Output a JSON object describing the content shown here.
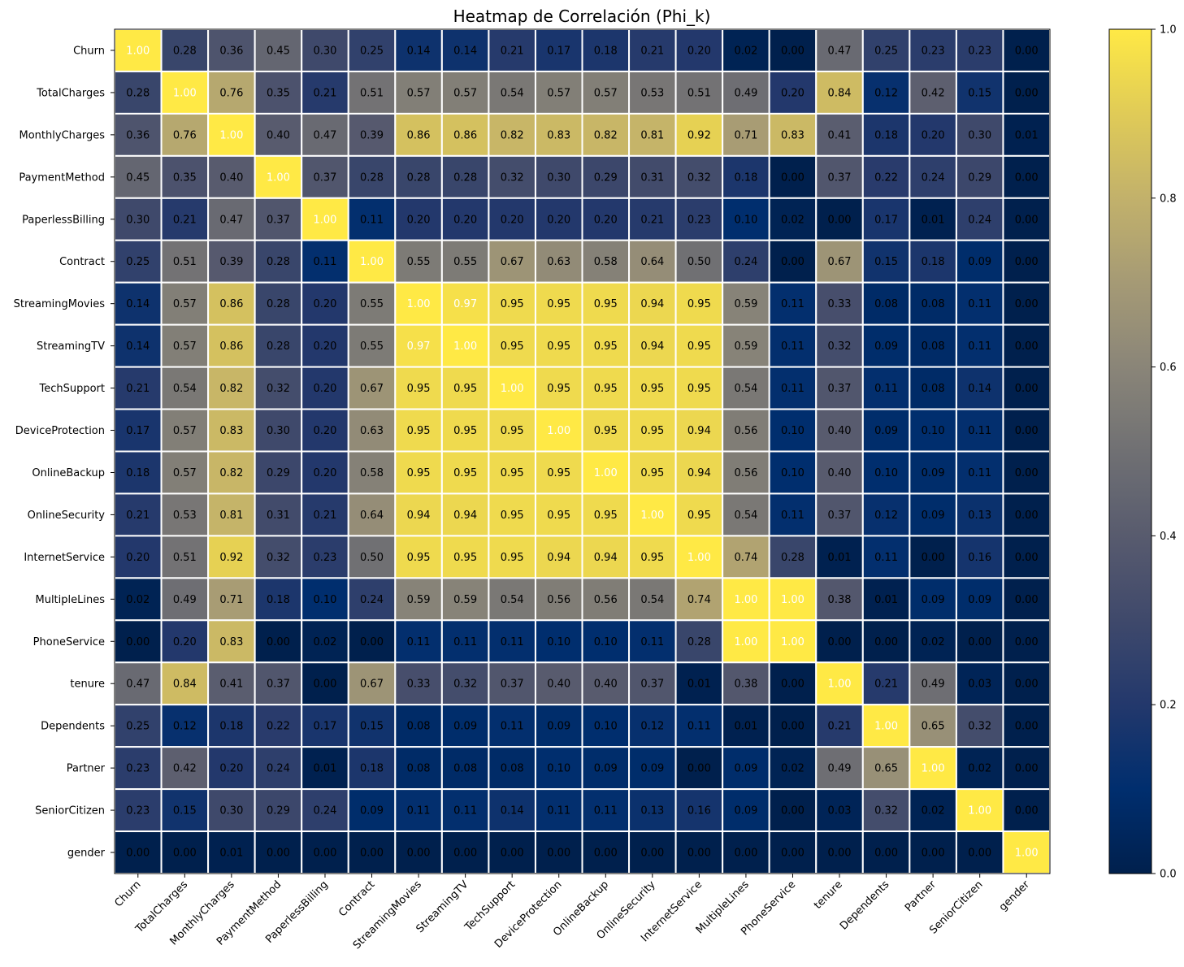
{
  "chart_data": {
    "type": "heatmap",
    "title": "Heatmap de Correlación (Phi_k)",
    "xlabel": "",
    "ylabel": "",
    "rows": [
      "Churn",
      "TotalCharges",
      "MonthlyCharges",
      "PaymentMethod",
      "PaperlessBilling",
      "Contract",
      "StreamingMovies",
      "StreamingTV",
      "TechSupport",
      "DeviceProtection",
      "OnlineBackup",
      "OnlineSecurity",
      "InternetService",
      "MultipleLines",
      "PhoneService",
      "tenure",
      "Dependents",
      "Partner",
      "SeniorCitizen",
      "gender"
    ],
    "columns": [
      "Churn",
      "TotalCharges",
      "MonthlyCharges",
      "PaymentMethod",
      "PaperlessBilling",
      "Contract",
      "StreamingMovies",
      "StreamingTV",
      "TechSupport",
      "DeviceProtection",
      "OnlineBackup",
      "OnlineSecurity",
      "InternetService",
      "MultipleLines",
      "PhoneService",
      "tenure",
      "Dependents",
      "Partner",
      "SeniorCitizen",
      "gender"
    ],
    "values": [
      [
        1.0,
        0.28,
        0.36,
        0.45,
        0.3,
        0.25,
        0.14,
        0.14,
        0.21,
        0.17,
        0.18,
        0.21,
        0.2,
        0.02,
        0.0,
        0.47,
        0.25,
        0.23,
        0.23,
        0.0
      ],
      [
        0.28,
        1.0,
        0.76,
        0.35,
        0.21,
        0.51,
        0.57,
        0.57,
        0.54,
        0.57,
        0.57,
        0.53,
        0.51,
        0.49,
        0.2,
        0.84,
        0.12,
        0.42,
        0.15,
        0.0
      ],
      [
        0.36,
        0.76,
        1.0,
        0.4,
        0.47,
        0.39,
        0.86,
        0.86,
        0.82,
        0.83,
        0.82,
        0.81,
        0.92,
        0.71,
        0.83,
        0.41,
        0.18,
        0.2,
        0.3,
        0.01
      ],
      [
        0.45,
        0.35,
        0.4,
        1.0,
        0.37,
        0.28,
        0.28,
        0.28,
        0.32,
        0.3,
        0.29,
        0.31,
        0.32,
        0.18,
        0.0,
        0.37,
        0.22,
        0.24,
        0.29,
        0.0
      ],
      [
        0.3,
        0.21,
        0.47,
        0.37,
        1.0,
        0.11,
        0.2,
        0.2,
        0.2,
        0.2,
        0.2,
        0.21,
        0.23,
        0.1,
        0.02,
        0.0,
        0.17,
        0.01,
        0.24,
        0.0
      ],
      [
        0.25,
        0.51,
        0.39,
        0.28,
        0.11,
        1.0,
        0.55,
        0.55,
        0.67,
        0.63,
        0.58,
        0.64,
        0.5,
        0.24,
        0.0,
        0.67,
        0.15,
        0.18,
        0.09,
        0.0
      ],
      [
        0.14,
        0.57,
        0.86,
        0.28,
        0.2,
        0.55,
        1.0,
        0.97,
        0.95,
        0.95,
        0.95,
        0.94,
        0.95,
        0.59,
        0.11,
        0.33,
        0.08,
        0.08,
        0.11,
        0.0
      ],
      [
        0.14,
        0.57,
        0.86,
        0.28,
        0.2,
        0.55,
        0.97,
        1.0,
        0.95,
        0.95,
        0.95,
        0.94,
        0.95,
        0.59,
        0.11,
        0.32,
        0.09,
        0.08,
        0.11,
        0.0
      ],
      [
        0.21,
        0.54,
        0.82,
        0.32,
        0.2,
        0.67,
        0.95,
        0.95,
        1.0,
        0.95,
        0.95,
        0.95,
        0.95,
        0.54,
        0.11,
        0.37,
        0.11,
        0.08,
        0.14,
        0.0
      ],
      [
        0.17,
        0.57,
        0.83,
        0.3,
        0.2,
        0.63,
        0.95,
        0.95,
        0.95,
        1.0,
        0.95,
        0.95,
        0.94,
        0.56,
        0.1,
        0.4,
        0.09,
        0.1,
        0.11,
        0.0
      ],
      [
        0.18,
        0.57,
        0.82,
        0.29,
        0.2,
        0.58,
        0.95,
        0.95,
        0.95,
        0.95,
        1.0,
        0.95,
        0.94,
        0.56,
        0.1,
        0.4,
        0.1,
        0.09,
        0.11,
        0.0
      ],
      [
        0.21,
        0.53,
        0.81,
        0.31,
        0.21,
        0.64,
        0.94,
        0.94,
        0.95,
        0.95,
        0.95,
        1.0,
        0.95,
        0.54,
        0.11,
        0.37,
        0.12,
        0.09,
        0.13,
        0.0
      ],
      [
        0.2,
        0.51,
        0.92,
        0.32,
        0.23,
        0.5,
        0.95,
        0.95,
        0.95,
        0.94,
        0.94,
        0.95,
        1.0,
        0.74,
        0.28,
        0.01,
        0.11,
        0.0,
        0.16,
        0.0
      ],
      [
        0.02,
        0.49,
        0.71,
        0.18,
        0.1,
        0.24,
        0.59,
        0.59,
        0.54,
        0.56,
        0.56,
        0.54,
        0.74,
        1.0,
        1.0,
        0.38,
        0.01,
        0.09,
        0.09,
        0.0
      ],
      [
        0.0,
        0.2,
        0.83,
        0.0,
        0.02,
        0.0,
        0.11,
        0.11,
        0.11,
        0.1,
        0.1,
        0.11,
        0.28,
        1.0,
        1.0,
        0.0,
        0.0,
        0.02,
        0.0,
        0.0
      ],
      [
        0.47,
        0.84,
        0.41,
        0.37,
        0.0,
        0.67,
        0.33,
        0.32,
        0.37,
        0.4,
        0.4,
        0.37,
        0.01,
        0.38,
        0.0,
        1.0,
        0.21,
        0.49,
        0.03,
        0.0
      ],
      [
        0.25,
        0.12,
        0.18,
        0.22,
        0.17,
        0.15,
        0.08,
        0.09,
        0.11,
        0.09,
        0.1,
        0.12,
        0.11,
        0.01,
        0.0,
        0.21,
        1.0,
        0.65,
        0.32,
        0.0
      ],
      [
        0.23,
        0.42,
        0.2,
        0.24,
        0.01,
        0.18,
        0.08,
        0.08,
        0.08,
        0.1,
        0.09,
        0.09,
        0.0,
        0.09,
        0.02,
        0.49,
        0.65,
        1.0,
        0.02,
        0.0
      ],
      [
        0.23,
        0.15,
        0.3,
        0.29,
        0.24,
        0.09,
        0.11,
        0.11,
        0.14,
        0.11,
        0.11,
        0.13,
        0.16,
        0.09,
        0.0,
        0.03,
        0.32,
        0.02,
        1.0,
        0.0
      ],
      [
        0.0,
        0.0,
        0.01,
        0.0,
        0.0,
        0.0,
        0.0,
        0.0,
        0.0,
        0.0,
        0.0,
        0.0,
        0.0,
        0.0,
        0.0,
        0.0,
        0.0,
        0.0,
        0.0,
        1.0
      ]
    ],
    "value_range": [
      0,
      1
    ],
    "colormap": "cividis",
    "colorbar": {
      "ticks": [
        0.0,
        0.2,
        0.4,
        0.6,
        0.8,
        1.0
      ],
      "tick_labels": [
        "0.0",
        "0.2",
        "0.4",
        "0.6",
        "0.8",
        "1.0"
      ]
    },
    "legend": "colorbar-right",
    "grid": false
  }
}
